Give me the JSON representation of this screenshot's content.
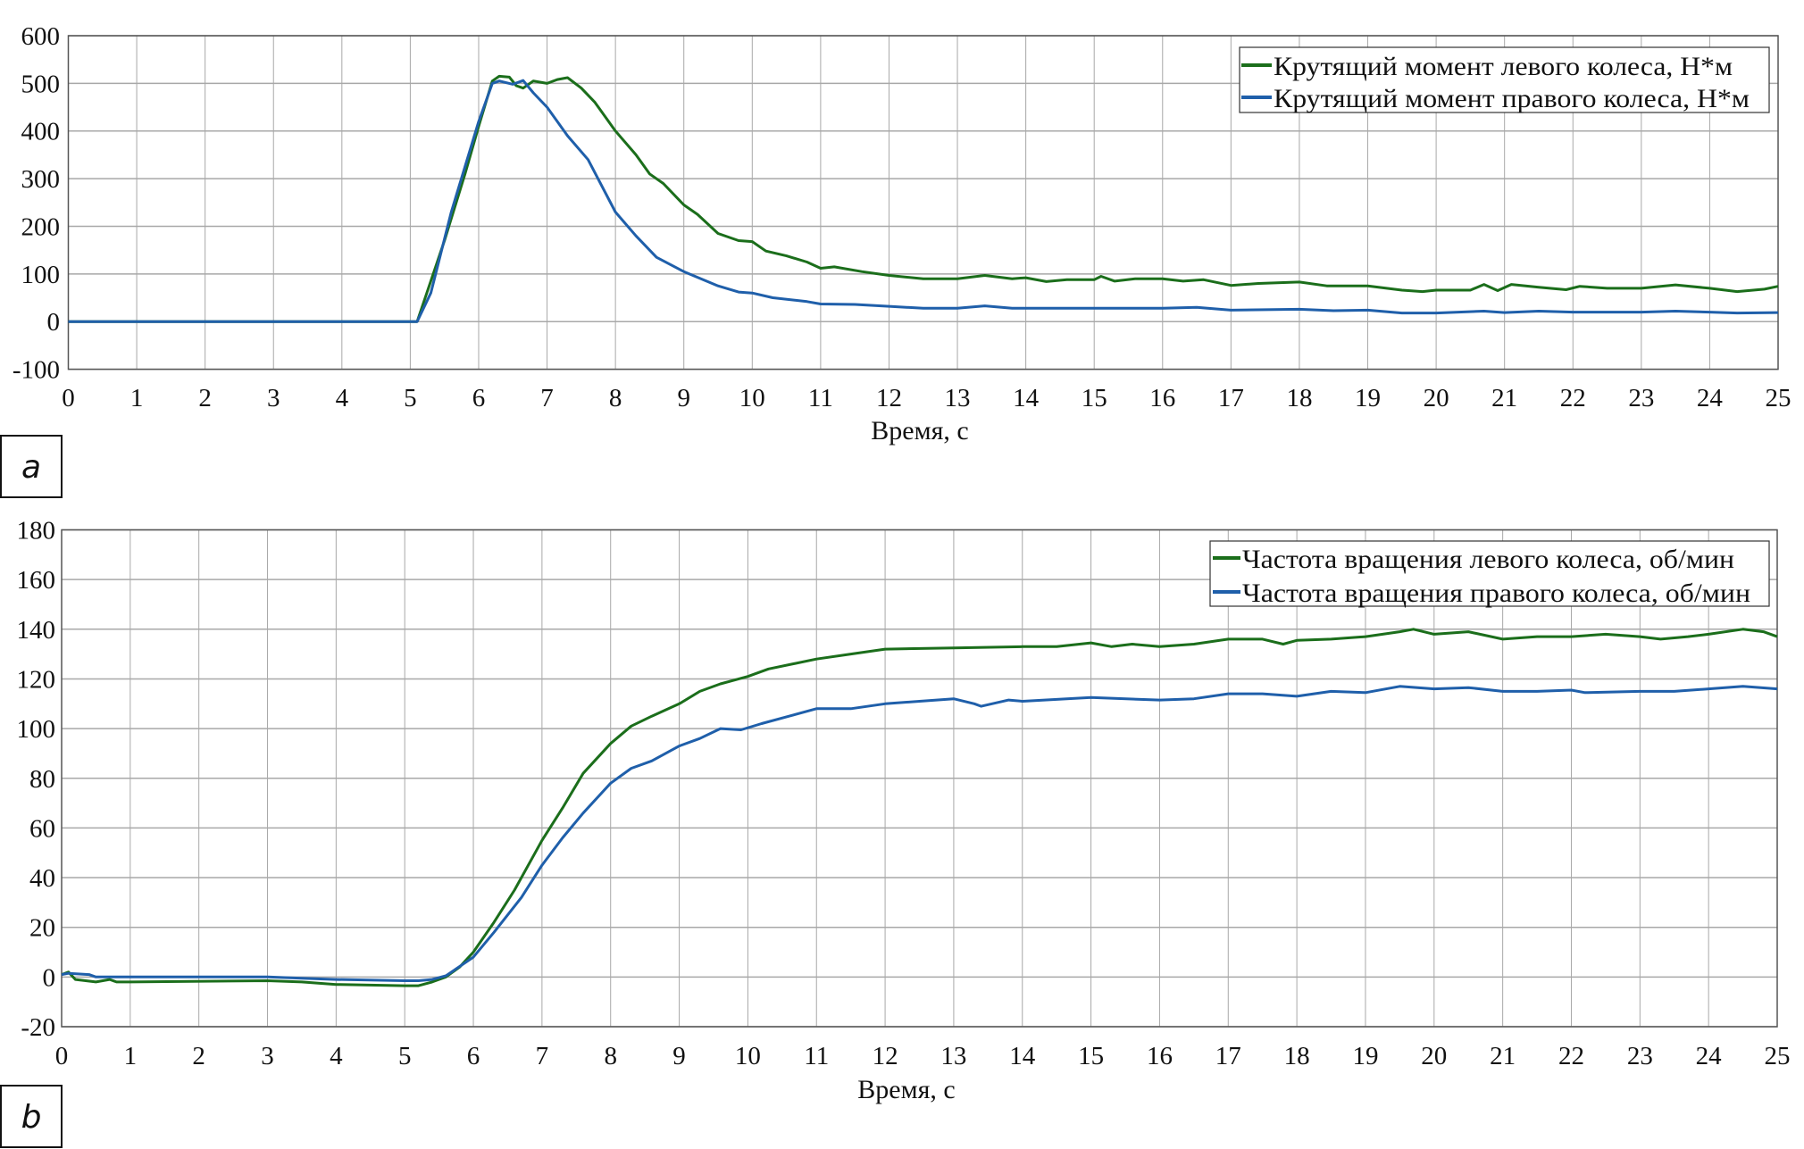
{
  "colors": {
    "left": "#1b6e1b",
    "right": "#1f5faa",
    "grid": "#a8a8a8",
    "frame": "#555555"
  },
  "chart_data": [
    {
      "type": "line",
      "panel_label": "a",
      "xlabel": "Время, с",
      "ylabel": "",
      "xlim": [
        0,
        25
      ],
      "ylim": [
        -100,
        600
      ],
      "xticks": [
        "0",
        "1",
        "2",
        "3",
        "4",
        "5",
        "6",
        "7",
        "8",
        "9",
        "10",
        "11",
        "12",
        "13",
        "14",
        "15",
        "16",
        "17",
        "18",
        "19",
        "20",
        "21",
        "22",
        "23",
        "24",
        "25"
      ],
      "yticks": [
        "-100",
        "0",
        "100",
        "200",
        "300",
        "400",
        "500",
        "600"
      ],
      "grid": true,
      "legend_position": "top-right",
      "series": [
        {
          "name": "Крутящий момент левого колеса, Н*м",
          "color": "#1b6e1b",
          "x": [
            0,
            5.1,
            5.5,
            5.8,
            6.0,
            6.2,
            6.3,
            6.45,
            6.55,
            6.65,
            6.8,
            7.0,
            7.15,
            7.3,
            7.5,
            7.7,
            8.0,
            8.3,
            8.5,
            8.7,
            9.0,
            9.2,
            9.5,
            9.8,
            10.0,
            10.2,
            10.5,
            10.8,
            11.0,
            11.2,
            11.6,
            12.0,
            12.5,
            13.0,
            13.4,
            13.8,
            14.0,
            14.3,
            14.6,
            15.0,
            15.1,
            15.3,
            15.6,
            16.0,
            16.3,
            16.6,
            17.0,
            17.4,
            18.0,
            18.4,
            19.0,
            19.5,
            19.8,
            20.0,
            20.5,
            20.7,
            20.9,
            21.1,
            21.5,
            21.9,
            22.1,
            22.5,
            23.0,
            23.5,
            24.0,
            24.4,
            24.8,
            25.0
          ],
          "y": [
            0,
            0,
            170,
            310,
            410,
            505,
            515,
            513,
            495,
            490,
            505,
            500,
            508,
            512,
            490,
            460,
            400,
            350,
            310,
            290,
            245,
            225,
            185,
            170,
            168,
            148,
            138,
            125,
            112,
            115,
            105,
            97,
            90,
            90,
            97,
            90,
            92,
            84,
            88,
            88,
            95,
            85,
            90,
            90,
            85,
            88,
            76,
            80,
            83,
            75,
            75,
            66,
            63,
            66,
            66,
            78,
            65,
            78,
            72,
            67,
            74,
            70,
            70,
            77,
            70,
            63,
            68,
            74
          ]
        },
        {
          "name": "Крутящий момент правого колеса, Н*м",
          "color": "#1f5faa",
          "x": [
            0,
            5.1,
            5.3,
            5.6,
            6.0,
            6.2,
            6.3,
            6.5,
            6.65,
            6.8,
            7.0,
            7.3,
            7.6,
            8.0,
            8.3,
            8.6,
            9.0,
            9.5,
            9.8,
            10.0,
            10.3,
            10.8,
            11.0,
            11.5,
            12.0,
            12.5,
            13.0,
            13.4,
            13.8,
            14.5,
            15.5,
            16.0,
            16.5,
            17.0,
            18.0,
            18.5,
            19.0,
            19.5,
            20.0,
            20.7,
            21.0,
            21.5,
            22.0,
            23.0,
            23.5,
            24.0,
            24.4,
            25.0
          ],
          "y": [
            0,
            0,
            60,
            230,
            420,
            500,
            505,
            498,
            506,
            480,
            450,
            390,
            340,
            230,
            180,
            135,
            105,
            75,
            62,
            60,
            50,
            42,
            37,
            36,
            32,
            28,
            28,
            33,
            28,
            28,
            28,
            28,
            30,
            24,
            26,
            23,
            24,
            18,
            18,
            22,
            19,
            22,
            20,
            20,
            22,
            20,
            18,
            19
          ]
        }
      ]
    },
    {
      "type": "line",
      "panel_label": "b",
      "xlabel": "Время, с",
      "ylabel": "",
      "xlim": [
        0,
        25
      ],
      "ylim": [
        -20,
        180
      ],
      "xticks": [
        "0",
        "1",
        "2",
        "3",
        "4",
        "5",
        "6",
        "7",
        "8",
        "9",
        "10",
        "11",
        "12",
        "13",
        "14",
        "15",
        "16",
        "17",
        "18",
        "19",
        "20",
        "21",
        "22",
        "23",
        "24",
        "25"
      ],
      "yticks": [
        "-20",
        "0",
        "20",
        "40",
        "60",
        "80",
        "100",
        "120",
        "140",
        "160",
        "180"
      ],
      "grid": true,
      "legend_position": "top-right",
      "series": [
        {
          "name": "Частота вращения левого колеса, об/мин",
          "color": "#1b6e1b",
          "x": [
            0,
            0.1,
            0.2,
            0.5,
            0.7,
            0.8,
            1,
            3,
            3.5,
            4,
            5,
            5.2,
            5.4,
            5.6,
            5.8,
            6.0,
            6.3,
            6.6,
            7.0,
            7.3,
            7.6,
            8.0,
            8.3,
            8.6,
            9.0,
            9.3,
            9.6,
            10.0,
            10.3,
            11.0,
            11.5,
            12,
            13,
            14,
            14.5,
            15,
            15.3,
            15.6,
            16,
            16.5,
            17,
            17.5,
            17.8,
            18,
            18.5,
            19,
            19.5,
            19.7,
            20,
            20.5,
            21,
            21.5,
            22,
            22.5,
            23,
            23.3,
            23.7,
            24,
            24.5,
            24.8,
            25
          ],
          "y": [
            1,
            2,
            -1,
            -2,
            -1,
            -2,
            -2,
            -1.5,
            -2,
            -3,
            -3.5,
            -3.5,
            -2,
            0,
            4,
            10,
            22,
            35,
            55,
            68,
            82,
            94,
            101,
            105,
            110,
            115,
            118,
            121,
            124,
            128,
            130,
            132,
            132.5,
            133,
            133,
            134.5,
            133,
            134,
            133,
            134,
            136,
            136,
            134,
            135.5,
            136,
            137,
            139,
            140,
            138,
            139,
            136,
            137,
            137,
            138,
            137,
            136,
            137,
            138,
            140,
            139,
            137
          ]
        },
        {
          "name": "Частота вращения правого колеса, об/мин",
          "color": "#1f5faa",
          "x": [
            0,
            0.1,
            0.4,
            0.5,
            1,
            3,
            3.5,
            4,
            5,
            5.2,
            5.4,
            5.6,
            6.0,
            6.3,
            6.7,
            7.0,
            7.3,
            7.6,
            8.0,
            8.3,
            8.6,
            9.0,
            9.3,
            9.6,
            9.9,
            10.2,
            10.6,
            11,
            11.5,
            12,
            12.5,
            13,
            13.3,
            13.4,
            13.8,
            14,
            15,
            16,
            16.5,
            17,
            17.5,
            18,
            18.5,
            19,
            19.5,
            20,
            20.5,
            21,
            21.5,
            22,
            22.2,
            23,
            23.5,
            24,
            24.5,
            25
          ],
          "y": [
            1,
            1.5,
            1,
            0,
            0,
            0,
            -0.5,
            -1,
            -1.5,
            -1.5,
            -1,
            0.5,
            8,
            18,
            32,
            45,
            56,
            66,
            78,
            84,
            87,
            93,
            96,
            100,
            99.5,
            102,
            105,
            108,
            108,
            110,
            111,
            112,
            110,
            109,
            111.5,
            111,
            112.5,
            111.5,
            112,
            114,
            114,
            113,
            115,
            114.5,
            117,
            116,
            116.5,
            115,
            115,
            115.5,
            114.5,
            115,
            115,
            116,
            117,
            116
          ]
        }
      ]
    }
  ]
}
